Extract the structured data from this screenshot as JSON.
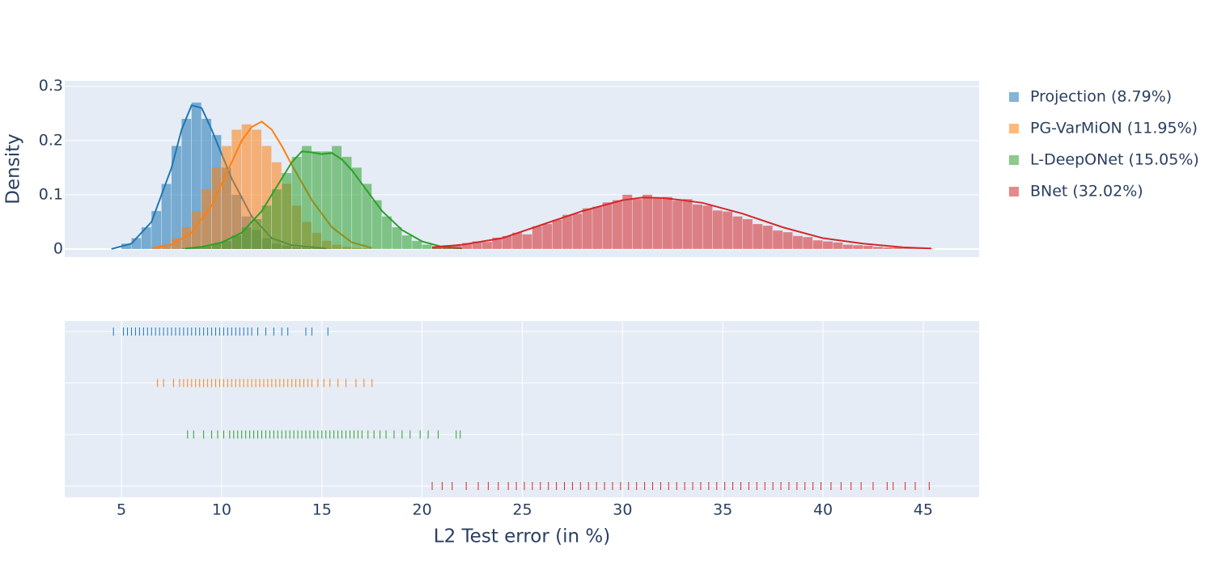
{
  "chart_data": {
    "type": "histogram",
    "xlabel": "L2 Test error (in %)",
    "ylabel": "Density",
    "xlim": [
      2.17,
      47.79
    ],
    "ylim": [
      -0.015,
      0.31
    ],
    "xticks": [
      5,
      10,
      15,
      20,
      25,
      30,
      35,
      40,
      45
    ],
    "yticks": [
      0,
      0.1,
      0.2,
      0.3
    ],
    "series": [
      {
        "name": "Projection (8.79%)",
        "color": "#1f77b4",
        "bins": [
          5,
          5.5,
          6,
          6.5,
          7,
          7.5,
          8,
          8.5,
          9,
          9.5,
          10,
          10.5,
          11,
          11.5,
          12,
          12.5,
          13,
          13.5,
          14,
          14.5,
          15,
          15.5
        ],
        "values": [
          0.01,
          0.02,
          0.04,
          0.07,
          0.12,
          0.19,
          0.24,
          0.27,
          0.24,
          0.21,
          0.15,
          0.1,
          0.06,
          0.035,
          0.02,
          0.01,
          0.006,
          0.003,
          0.002,
          0.002,
          0.001
        ],
        "kde": {
          "x": [
            4.5,
            5.5,
            6.5,
            7.5,
            8,
            8.5,
            9,
            9.5,
            10.5,
            11.5,
            12.5,
            13.5,
            15.2
          ],
          "y": [
            0,
            0.01,
            0.05,
            0.15,
            0.22,
            0.265,
            0.26,
            0.22,
            0.13,
            0.06,
            0.02,
            0.007,
            0.001
          ]
        },
        "rug": [
          4.6,
          5.1,
          5.3,
          5.5,
          5.7,
          5.9,
          6.1,
          6.3,
          6.5,
          6.7,
          6.9,
          7.1,
          7.3,
          7.5,
          7.7,
          7.9,
          8.1,
          8.3,
          8.5,
          8.7,
          8.9,
          9.1,
          9.3,
          9.5,
          9.7,
          9.9,
          10.1,
          10.3,
          10.5,
          10.7,
          10.9,
          11.1,
          11.3,
          11.5,
          11.8,
          12.2,
          12.6,
          13,
          13.3,
          14.2,
          14.5,
          15.3
        ]
      },
      {
        "name": "PG-VarMiON (11.95%)",
        "color": "#ff7f0e",
        "bins": [
          6.5,
          7,
          7.5,
          8,
          8.5,
          9,
          9.5,
          10,
          10.5,
          11,
          11.5,
          12,
          12.5,
          13,
          13.5,
          14,
          14.5,
          15,
          15.5,
          16,
          16.5,
          17,
          17.5
        ],
        "values": [
          0.003,
          0.008,
          0.02,
          0.04,
          0.07,
          0.11,
          0.15,
          0.19,
          0.22,
          0.23,
          0.22,
          0.19,
          0.16,
          0.12,
          0.08,
          0.05,
          0.03,
          0.015,
          0.008,
          0.004,
          0.002,
          0.001
        ],
        "kde": {
          "x": [
            6.5,
            7.5,
            8.5,
            9.5,
            10.5,
            11,
            11.5,
            12,
            12.5,
            13,
            13.5,
            14.5,
            15.5,
            16.5,
            17.5
          ],
          "y": [
            0.002,
            0.008,
            0.03,
            0.08,
            0.16,
            0.2,
            0.225,
            0.235,
            0.22,
            0.19,
            0.155,
            0.09,
            0.04,
            0.012,
            0.002
          ]
        },
        "rug": [
          6.8,
          7.1,
          7.6,
          7.9,
          8.1,
          8.3,
          8.5,
          8.7,
          8.9,
          9.1,
          9.3,
          9.5,
          9.7,
          9.9,
          10.1,
          10.3,
          10.5,
          10.7,
          10.9,
          11.1,
          11.3,
          11.5,
          11.7,
          11.9,
          12.1,
          12.3,
          12.5,
          12.7,
          12.9,
          13.1,
          13.3,
          13.5,
          13.7,
          13.9,
          14.1,
          14.3,
          14.5,
          14.8,
          15.1,
          15.4,
          15.8,
          16.2,
          16.7,
          17.1,
          17.5
        ]
      },
      {
        "name": "L-DeepONet (15.05%)",
        "color": "#2ca02c",
        "bins": [
          8,
          8.5,
          9,
          9.5,
          10,
          10.5,
          11,
          11.5,
          12,
          12.5,
          13,
          13.5,
          14,
          14.5,
          15,
          15.5,
          16,
          16.5,
          17,
          17.5,
          18,
          18.5,
          19,
          19.5,
          20,
          20.5,
          21,
          21.5,
          22
        ],
        "values": [
          0.002,
          0.003,
          0.005,
          0.01,
          0.015,
          0.025,
          0.04,
          0.055,
          0.08,
          0.11,
          0.14,
          0.17,
          0.19,
          0.18,
          0.18,
          0.19,
          0.17,
          0.15,
          0.12,
          0.09,
          0.06,
          0.04,
          0.025,
          0.015,
          0.008,
          0.005,
          0.003,
          0.002
        ],
        "kde": {
          "x": [
            8.2,
            9,
            10,
            11,
            12,
            12.5,
            13,
            13.5,
            14,
            14.5,
            15,
            15.5,
            16,
            16.5,
            17,
            18,
            19,
            20,
            21,
            22
          ],
          "y": [
            0.001,
            0.004,
            0.012,
            0.03,
            0.07,
            0.1,
            0.13,
            0.16,
            0.18,
            0.178,
            0.175,
            0.177,
            0.165,
            0.145,
            0.12,
            0.07,
            0.035,
            0.014,
            0.004,
            0.001
          ]
        },
        "rug": [
          8.3,
          8.6,
          9.1,
          9.5,
          9.8,
          10.1,
          10.4,
          10.6,
          10.8,
          11,
          11.2,
          11.4,
          11.6,
          11.8,
          12,
          12.2,
          12.4,
          12.6,
          12.8,
          13,
          13.2,
          13.4,
          13.6,
          13.8,
          14,
          14.2,
          14.4,
          14.6,
          14.8,
          15,
          15.2,
          15.4,
          15.6,
          15.8,
          16,
          16.2,
          16.4,
          16.6,
          16.8,
          17,
          17.3,
          17.6,
          17.9,
          18.2,
          18.6,
          19,
          19.4,
          19.9,
          20.3,
          20.8,
          21.7,
          21.9
        ]
      },
      {
        "name": "BNet (32.02%)",
        "color": "#d62728",
        "bins": [
          20.5,
          21,
          21.5,
          22,
          22.5,
          23,
          23.5,
          24,
          24.5,
          25,
          25.5,
          26,
          26.5,
          27,
          27.5,
          28,
          28.5,
          29,
          29.5,
          30,
          30.5,
          31,
          31.5,
          32,
          32.5,
          33,
          33.5,
          34,
          34.5,
          35,
          35.5,
          36,
          36.5,
          37,
          37.5,
          38,
          38.5,
          39,
          39.5,
          40,
          40.5,
          41,
          41.5,
          42,
          42.5,
          43,
          43.5,
          44,
          44.5,
          45,
          45.5
        ],
        "values": [
          0.004,
          0.007,
          0.006,
          0.011,
          0.014,
          0.013,
          0.021,
          0.024,
          0.03,
          0.027,
          0.042,
          0.046,
          0.054,
          0.063,
          0.065,
          0.075,
          0.078,
          0.086,
          0.09,
          0.1,
          0.092,
          0.1,
          0.093,
          0.096,
          0.089,
          0.092,
          0.082,
          0.08,
          0.071,
          0.069,
          0.06,
          0.055,
          0.046,
          0.043,
          0.034,
          0.031,
          0.024,
          0.022,
          0.016,
          0.014,
          0.012,
          0.008,
          0.007,
          0.006,
          0.004,
          0.003,
          0.004,
          0.002,
          0.001,
          0.001
        ],
        "kde": {
          "x": [
            20.5,
            22,
            24,
            26,
            28,
            30,
            31,
            32,
            33,
            34,
            36,
            38,
            40,
            42,
            44,
            45.4
          ],
          "y": [
            0.003,
            0.008,
            0.02,
            0.045,
            0.07,
            0.09,
            0.095,
            0.094,
            0.09,
            0.085,
            0.065,
            0.04,
            0.02,
            0.01,
            0.003,
            0.001
          ]
        },
        "rug": [
          20.5,
          21,
          21.5,
          22.2,
          22.8,
          23.3,
          23.8,
          24.3,
          24.7,
          25.1,
          25.5,
          25.9,
          26.3,
          26.7,
          27.1,
          27.5,
          27.9,
          28.3,
          28.7,
          29.1,
          29.5,
          29.9,
          30.3,
          30.7,
          31.1,
          31.5,
          31.9,
          32.3,
          32.7,
          33.1,
          33.5,
          33.9,
          34.3,
          34.7,
          35.1,
          35.5,
          35.9,
          36.3,
          36.7,
          37.1,
          37.5,
          37.9,
          38.3,
          38.7,
          39.1,
          39.5,
          39.9,
          40.4,
          40.9,
          41.4,
          41.9,
          42.5,
          43.2,
          43.5,
          44.1,
          44.6,
          45.3
        ]
      }
    ]
  }
}
